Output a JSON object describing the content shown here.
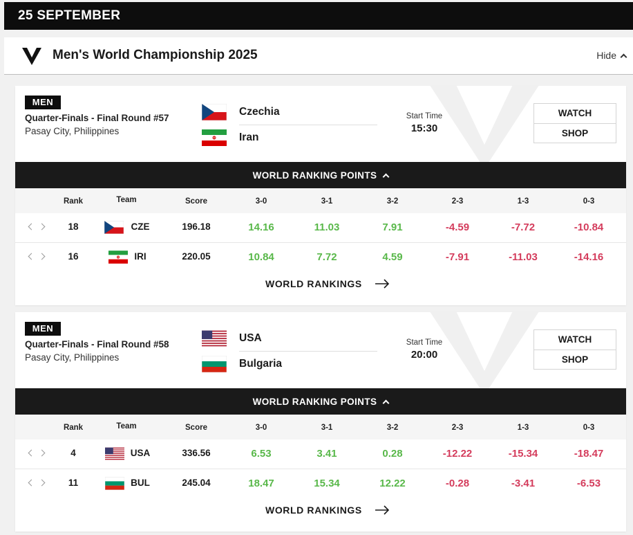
{
  "date_label": "25 SEPTEMBER",
  "championship": {
    "title": "Men's World Championship 2025",
    "hide_label": "Hide"
  },
  "labels": {
    "start_time": "Start Time",
    "watch": "WATCH",
    "shop": "SHOP",
    "wrp": "WORLD RANKING POINTS",
    "world_rankings": "WORLD RANKINGS",
    "columns": [
      "Rank",
      "Team",
      "Score",
      "3-0",
      "3-1",
      "3-2",
      "2-3",
      "1-3",
      "0-3"
    ]
  },
  "matches": [
    {
      "gender": "MEN",
      "round": "Quarter-Finals - Final Round #57",
      "venue": "Pasay City, Philippines",
      "home": {
        "name": "Czechia",
        "flag": "czech-flag"
      },
      "away": {
        "name": "Iran",
        "flag": "iran-flag"
      },
      "start_time": "15:30",
      "rows": [
        {
          "rank": "18",
          "code": "CZE",
          "flag": "czech-flag",
          "score": "196.18",
          "points": [
            "14.16",
            "11.03",
            "7.91",
            "-4.59",
            "-7.72",
            "-10.84"
          ]
        },
        {
          "rank": "16",
          "code": "IRI",
          "flag": "iran-flag",
          "score": "220.05",
          "points": [
            "10.84",
            "7.72",
            "4.59",
            "-7.91",
            "-11.03",
            "-14.16"
          ]
        }
      ]
    },
    {
      "gender": "MEN",
      "round": "Quarter-Finals - Final Round #58",
      "venue": "Pasay City, Philippines",
      "home": {
        "name": "USA",
        "flag": "usa-flag"
      },
      "away": {
        "name": "Bulgaria",
        "flag": "bulgaria-flag"
      },
      "start_time": "20:00",
      "rows": [
        {
          "rank": "4",
          "code": "USA",
          "flag": "usa-flag",
          "score": "336.56",
          "points": [
            "6.53",
            "3.41",
            "0.28",
            "-12.22",
            "-15.34",
            "-18.47"
          ]
        },
        {
          "rank": "11",
          "code": "BUL",
          "flag": "bulgaria-flag",
          "score": "245.04",
          "points": [
            "18.47",
            "15.34",
            "12.22",
            "-0.28",
            "-3.41",
            "-6.53"
          ]
        }
      ]
    }
  ],
  "colors": {
    "positive": "#59b84a",
    "negative": "#d43c5c",
    "dark": "#1a1a1a"
  }
}
